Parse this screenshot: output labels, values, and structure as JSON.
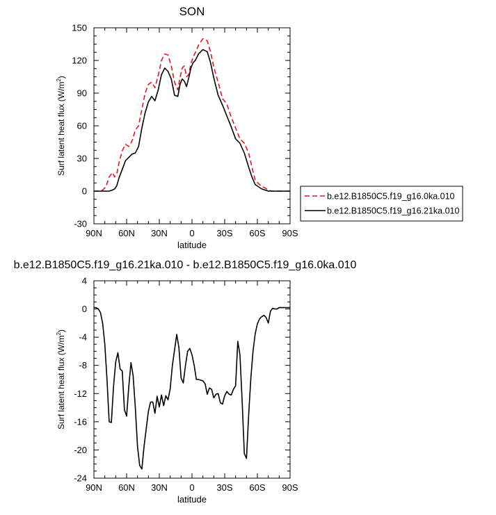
{
  "chart_data": [
    {
      "type": "line",
      "title": "SON",
      "xlabel": "latitude",
      "ylabel": "Surf latent heat flux (W/m2)",
      "ylabel_main": "Surf latent heat flux (W/m",
      "ylabel_sup": "2",
      "ylabel_close": ")",
      "xlim": [
        90,
        -90
      ],
      "ylim": [
        -30,
        150
      ],
      "x_ticks": [
        90,
        60,
        30,
        0,
        -30,
        -60,
        -90
      ],
      "x_tick_labels": [
        "90N",
        "60N",
        "30N",
        "0",
        "30S",
        "60S",
        "90S"
      ],
      "y_ticks": [
        -30,
        0,
        30,
        60,
        90,
        120,
        150
      ],
      "y_tick_labels": [
        "-30",
        "0",
        "30",
        "60",
        "90",
        "120",
        "150"
      ],
      "grid": false,
      "legend": "right, outside",
      "series": [
        {
          "name": "b.e12.B1850C5.f19_g16.0ka.010",
          "color": "#e8141c",
          "dash": "dashed",
          "x": [
            90,
            86,
            82,
            79,
            76,
            73,
            71,
            69,
            67,
            64,
            61,
            58,
            55,
            52,
            49,
            46,
            43,
            40,
            37,
            34,
            31,
            28,
            25,
            22,
            19,
            16,
            13,
            11,
            9,
            7,
            5,
            3,
            1,
            -1,
            -3,
            -6,
            -10,
            -14,
            -17,
            -20,
            -24,
            -28,
            -32,
            -36,
            -40,
            -44,
            -48,
            -52,
            -55,
            -58,
            -61,
            -64,
            -67,
            -70,
            -73,
            -76,
            -80,
            -84,
            -88,
            -90
          ],
          "y": [
            0,
            0,
            1,
            4,
            13,
            17,
            13,
            16,
            26,
            37,
            43,
            41,
            46,
            56,
            60,
            75,
            90,
            98,
            100,
            95,
            106,
            120,
            126,
            125,
            115,
            100,
            93,
            104,
            113,
            115,
            105,
            107,
            117,
            123,
            127,
            134,
            140,
            138,
            128,
            114,
            100,
            85,
            80,
            68,
            58,
            48,
            44,
            35,
            22,
            10,
            7,
            4,
            3,
            1,
            0,
            0,
            0,
            0,
            0,
            0
          ]
        },
        {
          "name": "b.e12.B1850C5.f19_g16.21ka.010",
          "color": "#000000",
          "dash": "solid",
          "x": [
            90,
            86,
            82,
            79,
            76,
            73,
            71,
            69,
            67,
            64,
            61,
            58,
            55,
            52,
            49,
            46,
            43,
            40,
            37,
            34,
            31,
            28,
            25,
            22,
            19,
            16,
            13,
            11,
            9,
            7,
            5,
            3,
            1,
            -1,
            -3,
            -6,
            -10,
            -14,
            -17,
            -20,
            -24,
            -28,
            -32,
            -36,
            -40,
            -44,
            -48,
            -52,
            -55,
            -58,
            -61,
            -64,
            -67,
            -70,
            -73,
            -76,
            -80,
            -84,
            -88,
            -90
          ],
          "y": [
            0,
            0,
            0,
            0,
            0,
            1,
            2,
            5,
            12,
            20,
            28,
            31,
            34,
            35,
            41,
            58,
            72,
            82,
            87,
            83,
            93,
            107,
            113,
            110,
            103,
            88,
            87,
            98,
            103,
            101,
            96,
            104,
            113,
            118,
            120,
            126,
            130,
            128,
            118,
            104,
            88,
            79,
            69,
            59,
            48,
            44,
            35,
            22,
            13,
            6,
            4,
            2,
            1,
            0,
            0,
            0,
            0,
            0,
            0,
            0
          ]
        }
      ]
    },
    {
      "type": "line",
      "title": "b.e12.B1850C5.f19_g16.21ka.010 - b.e12.B1850C5.f19_g16.0ka.010",
      "xlabel": "latitude",
      "ylabel": "Surf latent heat flux (W/m2)",
      "ylabel_main": "Surf latent heat flux (W/m",
      "ylabel_sup": "2",
      "ylabel_close": ")",
      "xlim": [
        90,
        -90
      ],
      "ylim": [
        -24,
        4
      ],
      "x_ticks": [
        90,
        60,
        30,
        0,
        -30,
        -60,
        -90
      ],
      "x_tick_labels": [
        "90N",
        "60N",
        "30N",
        "0",
        "30S",
        "60S",
        "90S"
      ],
      "y_ticks": [
        -24,
        -20,
        -16,
        -12,
        -8,
        -4,
        0,
        4
      ],
      "y_tick_labels": [
        "-24",
        "-20",
        "-16",
        "-12",
        "-8",
        "-4",
        "0",
        "4"
      ],
      "grid": false,
      "series": [
        {
          "color": "#000000",
          "dash": "solid",
          "x": [
            90,
            88,
            86,
            84,
            82,
            80,
            78,
            76,
            74,
            72,
            70,
            68,
            66,
            64,
            62,
            60,
            58,
            56,
            54,
            52,
            50,
            48,
            46,
            44,
            42,
            40,
            38,
            36,
            34,
            32,
            30,
            28,
            26,
            24,
            22,
            20,
            18,
            16,
            14,
            12,
            10,
            8,
            6,
            4,
            2,
            0,
            -2,
            -4,
            -6,
            -8,
            -10,
            -12,
            -14,
            -16,
            -18,
            -20,
            -22,
            -24,
            -26,
            -28,
            -30,
            -32,
            -34,
            -36,
            -38,
            -40,
            -42,
            -44,
            -46,
            -48,
            -50,
            -52,
            -54,
            -56,
            -58,
            -60,
            -62,
            -64,
            -66,
            -68,
            -70,
            -72,
            -74,
            -76,
            -78,
            -80,
            -82,
            -84,
            -86,
            -88,
            -90
          ],
          "y": [
            0.2,
            0.2,
            0.0,
            -0.5,
            -2.0,
            -5.0,
            -10.0,
            -16.0,
            -16.1,
            -11.0,
            -7.5,
            -6.2,
            -8.5,
            -8.8,
            -14.3,
            -15.2,
            -11.0,
            -7.6,
            -9.5,
            -14.0,
            -19.5,
            -22.2,
            -22.7,
            -19.5,
            -17.0,
            -14.5,
            -13.2,
            -13.2,
            -14.8,
            -12.4,
            -13.9,
            -12.2,
            -13.7,
            -12.3,
            -12.9,
            -11.3,
            -8.0,
            -5.8,
            -3.6,
            -5.5,
            -9.8,
            -10.5,
            -8.0,
            -6.0,
            -5.6,
            -6.5,
            -8.0,
            -10.0,
            -10.0,
            -10.1,
            -10.2,
            -10.6,
            -12.1,
            -11.2,
            -11.4,
            -12.6,
            -12.1,
            -12.0,
            -13.3,
            -13.5,
            -12.3,
            -11.7,
            -12.1,
            -12.2,
            -11.4,
            -10.9,
            -4.6,
            -6.5,
            -13.0,
            -20.5,
            -21.2,
            -15.0,
            -9.8,
            -6.0,
            -3.5,
            -2.1,
            -1.4,
            -1.1,
            -0.9,
            -1.2,
            -2.0,
            -0.3,
            0.1,
            0.0,
            0.0,
            0.2,
            0.2,
            0.2,
            0.2,
            0.2,
            0.2
          ]
        }
      ]
    }
  ]
}
